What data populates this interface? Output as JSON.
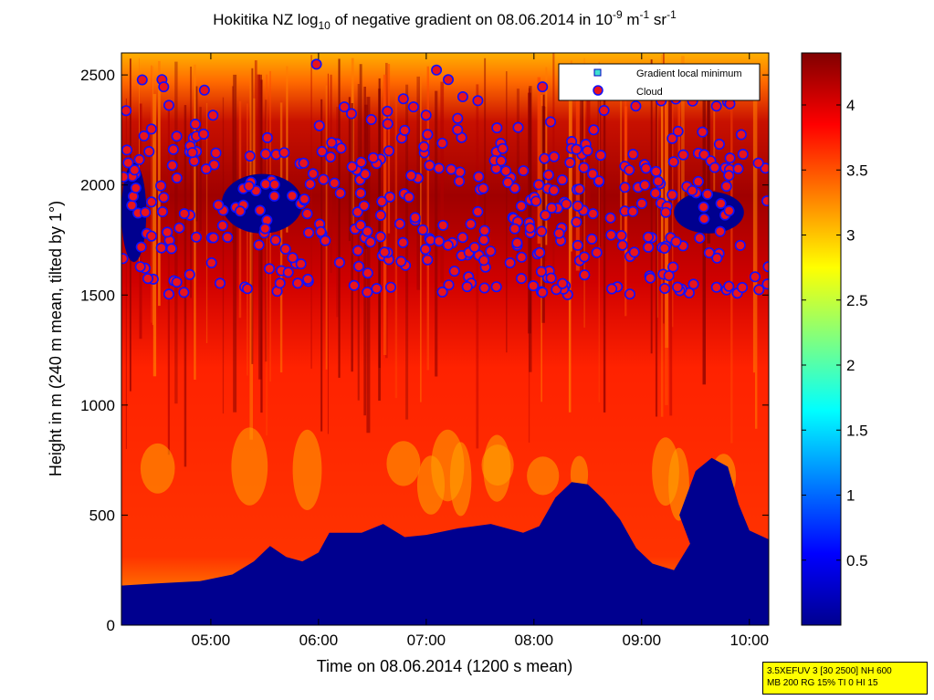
{
  "title": {
    "prefix": "Hokitika NZ log",
    "sub": "10",
    "middle": " of negative gradient on 08.06.2014 in 10",
    "sup1": "-9",
    "unit1": " m",
    "sup2": "-1",
    "unit2": " sr",
    "sup3": "-1"
  },
  "info_box": {
    "line1": "3.5XEFUV 3 [30 2500] NH 600",
    "line2": "MB 200 RG 15% TI 0 HI 15"
  },
  "colors": {
    "cloud_fill": "#e8141c",
    "cloud_edge": "#1010ff",
    "cloud_ring": "#ffffff",
    "minimum_fill": "#40e0d0",
    "low_signal": "#00008f"
  },
  "chart_data": {
    "type": "heatmap",
    "xlabel": "Time on 08.06.2014 (1200 s mean)",
    "ylabel": "Height in m (240 m mean, tilted by 1°)",
    "x_ticks": [
      "05:00",
      "06:00",
      "07:00",
      "08:00",
      "09:00",
      "10:00"
    ],
    "x_tick_hours": [
      5,
      6,
      7,
      8,
      9,
      10
    ],
    "xlim_hours": [
      4.17,
      10.18
    ],
    "y_ticks": [
      "0",
      "500",
      "1000",
      "1500",
      "2000",
      "2500"
    ],
    "y_tick_values": [
      0,
      500,
      1000,
      1500,
      2000,
      2500
    ],
    "ylim": [
      0,
      2600
    ],
    "colorbar": {
      "ticks": [
        "0.5",
        "1",
        "1.5",
        "2",
        "2.5",
        "3",
        "3.5",
        "4"
      ],
      "tick_values": [
        0.5,
        1,
        1.5,
        2,
        2.5,
        3,
        3.5,
        4
      ],
      "range": [
        0,
        4.4
      ],
      "colormap": "jet"
    },
    "legend": {
      "placement": "top-right",
      "entries": [
        "Gradient local minimum",
        "Cloud"
      ]
    },
    "lower_boundary_profile": [
      [
        4.17,
        180
      ],
      [
        4.5,
        190
      ],
      [
        4.9,
        200
      ],
      [
        5.2,
        230
      ],
      [
        5.4,
        290
      ],
      [
        5.55,
        360
      ],
      [
        5.7,
        310
      ],
      [
        5.85,
        290
      ],
      [
        6.0,
        330
      ],
      [
        6.1,
        420
      ],
      [
        6.4,
        420
      ],
      [
        6.6,
        460
      ],
      [
        6.8,
        400
      ],
      [
        7.0,
        410
      ],
      [
        7.3,
        440
      ],
      [
        7.6,
        460
      ],
      [
        7.9,
        420
      ],
      [
        8.05,
        450
      ],
      [
        8.2,
        580
      ],
      [
        8.35,
        650
      ],
      [
        8.5,
        640
      ],
      [
        8.65,
        570
      ],
      [
        8.8,
        480
      ],
      [
        8.95,
        350
      ],
      [
        9.1,
        280
      ],
      [
        9.3,
        250
      ],
      [
        9.45,
        370
      ],
      [
        9.35,
        500
      ],
      [
        9.5,
        700
      ],
      [
        9.65,
        760
      ],
      [
        9.8,
        720
      ],
      [
        9.9,
        550
      ],
      [
        10.0,
        430
      ],
      [
        10.18,
        390
      ]
    ],
    "upper_low_signal_regions": [
      {
        "hour_from": 4.17,
        "hour_to": 4.4,
        "height_from": 1650,
        "height_to": 2100
      },
      {
        "hour_from": 5.1,
        "hour_to": 5.85,
        "height_from": 1780,
        "height_to": 2050
      },
      {
        "hour_from": 9.3,
        "hour_to": 9.95,
        "height_from": 1780,
        "height_to": 1970
      }
    ],
    "cloud_band_hours": [
      4.17,
      10.18
    ],
    "cloud_band_heights": [
      1500,
      2600
    ]
  }
}
